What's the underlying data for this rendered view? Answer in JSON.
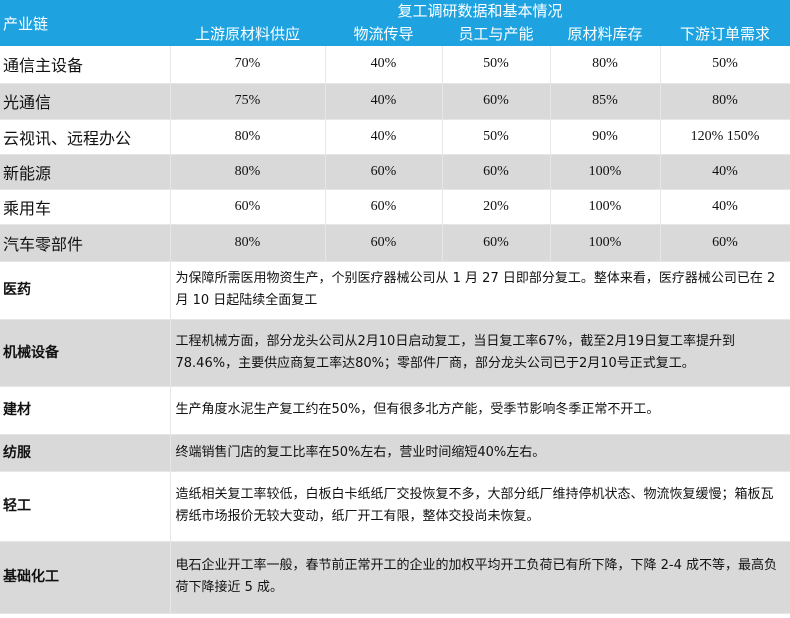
{
  "header": {
    "row_label": "产业链",
    "group_title": "复工调研数据和基本情况",
    "columns": [
      "上游原材料供应",
      "物流传导",
      "员工与产能",
      "原材料库存",
      "下游订单需求"
    ]
  },
  "numeric_rows": [
    {
      "name": "通信主设备",
      "values": [
        "70%",
        "40%",
        "50%",
        "80%",
        "50%"
      ]
    },
    {
      "name": "光通信",
      "values": [
        "75%",
        "40%",
        "60%",
        "85%",
        "80%"
      ]
    },
    {
      "name": "云视讯、远程办公",
      "values": [
        "80%",
        "40%",
        "50%",
        "90%",
        "120% 150%"
      ]
    },
    {
      "name": "新能源",
      "values": [
        "80%",
        "60%",
        "60%",
        "100%",
        "40%"
      ]
    },
    {
      "name": "乘用车",
      "values": [
        "60%",
        "60%",
        "20%",
        "100%",
        "40%"
      ]
    },
    {
      "name": "汽车零部件",
      "values": [
        "80%",
        "60%",
        "60%",
        "100%",
        "60%"
      ]
    }
  ],
  "text_rows": [
    {
      "name": "医药",
      "text": "为保障所需医用物资生产，个别医疗器械公司从 1 月 27 日即部分复工。整体来看，医疗器械公司已在 2 月 10 日起陆续全面复工"
    },
    {
      "name": "机械设备",
      "text": "工程机械方面，部分龙头公司从2月10日启动复工，当日复工率67%，截至2月19日复工率提升到78.46%，主要供应商复工率达80%；零部件厂商，部分龙头公司已于2月10号正式复工。"
    },
    {
      "name": "建材",
      "text": "生产角度水泥生产复工约在50%，但有很多北方产能，受季节影响冬季正常不开工。"
    },
    {
      "name": "纺服",
      "text": "终端销售门店的复工比率在50%左右，营业时间缩短40%左右。"
    },
    {
      "name": "轻工",
      "text": "造纸相关复工率较低，白板白卡纸纸厂交投恢复不多，大部分纸厂维持停机状态、物流恢复缓慢；箱板瓦楞纸市场报价无较大变动，纸厂开工有限，整体交投尚未恢复。"
    },
    {
      "name": "基础化工",
      "text": "电石企业开工率一般，春节前正常开工的企业的加权平均开工负荷已有所下降，下降 2-4 成不等，最高负荷下降接近 5 成。"
    }
  ],
  "colors": {
    "header": "#1fa3e0",
    "stripe": "#d9d9d9"
  }
}
